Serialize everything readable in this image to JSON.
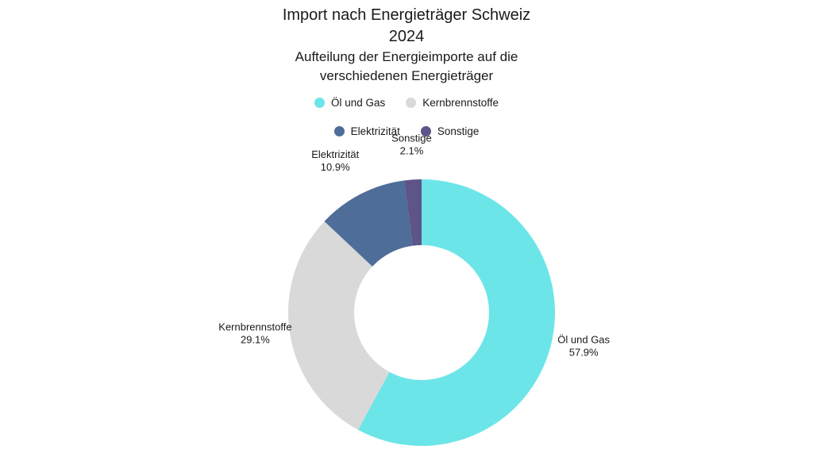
{
  "chart_data": {
    "type": "pie",
    "variant": "donut",
    "title_lines": [
      "Import nach Energieträger Schweiz",
      "2024"
    ],
    "subtitle_lines": [
      "Aufteilung der Energieimporte auf die",
      "verschiedenen Energieträger"
    ],
    "legend_placement": "top",
    "slices": [
      {
        "label": "Öl und Gas",
        "value": 57.9,
        "display": "57.9%",
        "color": "#6ce5e8"
      },
      {
        "label": "Kernbrennstoffe",
        "value": 29.1,
        "display": "29.1%",
        "color": "#d9d9d9"
      },
      {
        "label": "Elektrizität",
        "value": 10.9,
        "display": "10.9%",
        "color": "#4e6d98"
      },
      {
        "label": "Sonstige",
        "value": 2.1,
        "display": "2.1%",
        "color": "#5d5488"
      }
    ],
    "legend": [
      [
        "Öl und Gas",
        "Kernbrennstoffe"
      ],
      [
        "Elektrizität",
        "Sonstige"
      ]
    ]
  }
}
